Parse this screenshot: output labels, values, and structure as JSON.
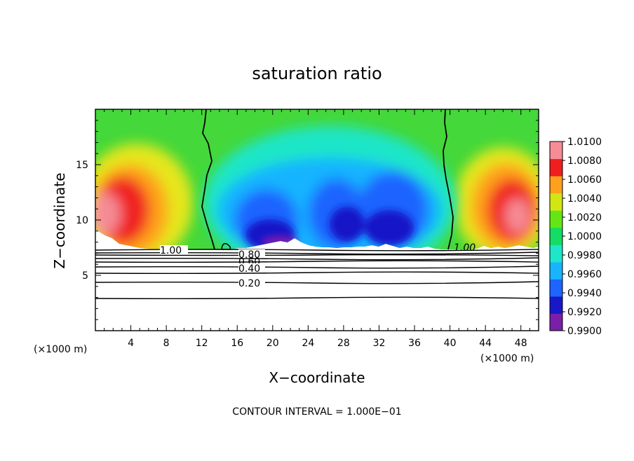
{
  "chart_data": {
    "type": "heatmap",
    "title": "saturation ratio",
    "xlabel": "X−coordinate",
    "ylabel": "Z−coordinate",
    "x_units": "(×1000 m)",
    "x_units_left": "(×1000 m)",
    "xlim": [
      0,
      50
    ],
    "ylim": [
      0,
      20
    ],
    "x_ticks": [
      4,
      8,
      12,
      16,
      20,
      24,
      28,
      32,
      36,
      40,
      44,
      48
    ],
    "x_tick_labels": [
      "4",
      "8",
      "12",
      "16",
      "20",
      "24",
      "28",
      "32",
      "36",
      "40",
      "44",
      "48"
    ],
    "y_ticks": [
      5,
      10,
      15
    ],
    "y_tick_labels": [
      "5",
      "10",
      "15"
    ],
    "colorbar": {
      "levels": [
        0.99,
        0.992,
        0.994,
        0.996,
        0.998,
        1.0,
        1.002,
        1.004,
        1.006,
        1.008,
        1.01
      ],
      "labels": [
        "0.9900",
        "0.9920",
        "0.9940",
        "0.9960",
        "0.9980",
        "1.0000",
        "1.0020",
        "1.0040",
        "1.0060",
        "1.0080",
        "1.0100"
      ],
      "colors": [
        "#7a1fa8",
        "#1818c8",
        "#1e64ff",
        "#18b4ff",
        "#1ee6c8",
        "#14dc64",
        "#64e614",
        "#d2e614",
        "#ffa01e",
        "#f01e1e",
        "#f58c96"
      ]
    },
    "contour_labels": [
      "1.00",
      "0.80",
      "0.60",
      "0.40",
      "0.20",
      "1.00"
    ],
    "contour_levels": [
      0.2,
      0.3,
      0.4,
      0.5,
      0.6,
      0.7,
      0.8,
      0.9,
      1.0
    ],
    "note": "CONTOUR INTERVAL = 1.000E−01"
  }
}
